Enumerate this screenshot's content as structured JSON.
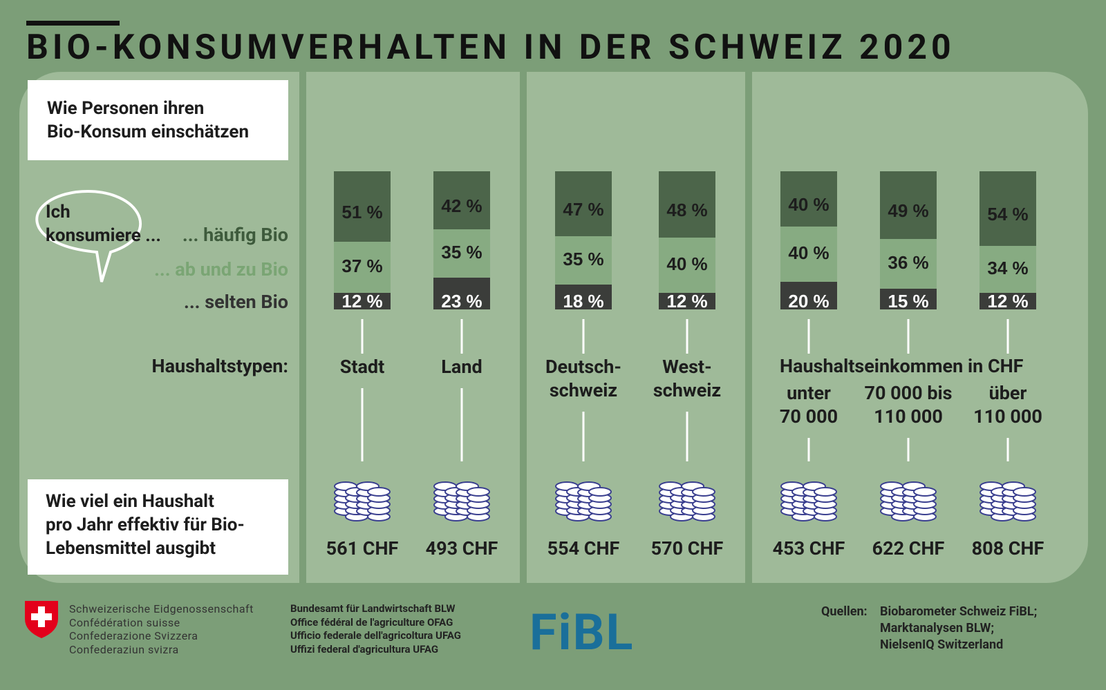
{
  "title": "BIO-KONSUMVERHALTEN IN DER SCHWEIZ 2020",
  "chart_data": {
    "type": "stacked_bar",
    "subtitle": "Wie Personen ihren\nBio-Konsum einschätzen",
    "speech": "Ich\nkonsumiere ...",
    "group_labels": [
      "Haushaltstypen:",
      "Haushaltseinkommen in CHF"
    ],
    "categories": [
      "Stadt",
      "Land",
      "Deutsch-\nschweiz",
      "West-\nschweiz",
      "unter\n70 000",
      "70 000 bis\n110 000",
      "über\n110 000"
    ],
    "series": [
      {
        "name": "... selten Bio",
        "color": "#3b3d3a",
        "values": [
          12,
          23,
          18,
          12,
          20,
          15,
          12
        ],
        "value_labels": [
          "12 %",
          "23 %",
          "18 %",
          "12 %",
          "20 %",
          "15 %",
          "12 %"
        ]
      },
      {
        "name": "... ab und zu Bio",
        "color": "#87ab82",
        "values": [
          37,
          35,
          35,
          40,
          40,
          36,
          34
        ],
        "value_labels": [
          "37 %",
          "35 %",
          "35 %",
          "40 %",
          "40 %",
          "36 %",
          "34 %"
        ]
      },
      {
        "name": "... häufig Bio",
        "color": "#4c654a",
        "values": [
          51,
          42,
          47,
          48,
          40,
          49,
          54
        ],
        "value_labels": [
          "51 %",
          "42 %",
          "47 %",
          "48 %",
          "40 %",
          "49 %",
          "54 %"
        ]
      }
    ],
    "spending_label": "Wie viel ein Haushalt\npro Jahr effektiv für Bio-\nLebensmittel ausgibt",
    "spending": {
      "values": [
        561,
        493,
        554,
        570,
        453,
        622,
        808
      ],
      "value_labels": [
        "561 CHF",
        "493 CHF",
        "554 CHF",
        "570 CHF",
        "453 CHF",
        "622 CHF",
        "808 CHF"
      ]
    }
  },
  "footer": {
    "confederation": "Schweizerische Eidgenossenschaft\nConfédération suisse\nConfederazione Svizzera\nConfederaziun svizra",
    "office": "Bundesamt für Landwirtschaft BLW\nOffice fédéral de l'agriculture OFAG\nUfficio federale dell'agricoltura UFAG\nUffizi federal d'agricultura UFAG",
    "logo": "FiBL",
    "sources_label": "Quellen:",
    "sources": "Biobarometer Schweiz FiBL;\nMarktanalysen BLW;\nNielsenIQ Switzerland"
  }
}
